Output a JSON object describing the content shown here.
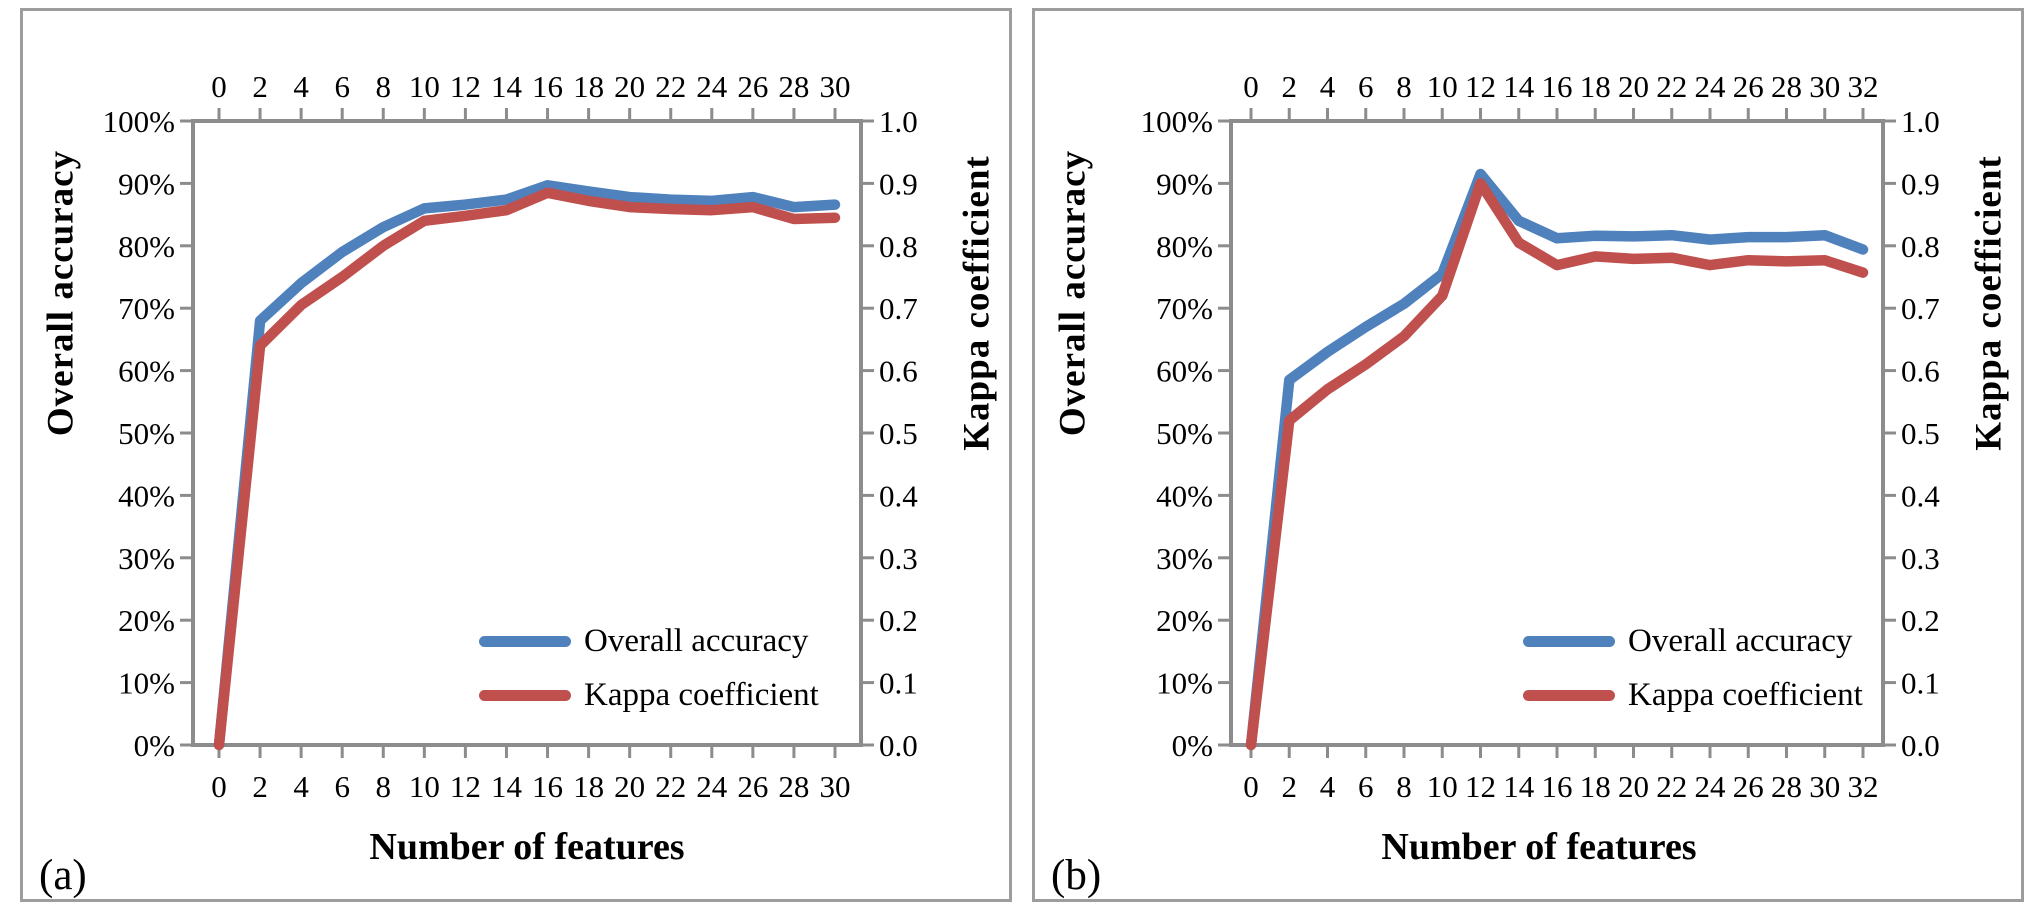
{
  "figure": {
    "background": "#ffffff",
    "panel_border_color": "#9d9d9d",
    "axis_color": "#8c8c8c",
    "text_color": "#000000",
    "accent_blue": "#4F81BD",
    "accent_red": "#C0504D"
  },
  "chart_data": [
    {
      "type": "line",
      "panel_label": "(a)",
      "x_label": "Number of features",
      "x": [
        0,
        2,
        4,
        6,
        8,
        10,
        12,
        14,
        16,
        18,
        20,
        22,
        24,
        26,
        28,
        30
      ],
      "x_tick_labels": [
        "0",
        "2",
        "4",
        "6",
        "8",
        "10",
        "12",
        "14",
        "16",
        "18",
        "20",
        "22",
        "24",
        "26",
        "28",
        "30"
      ],
      "x_range": [
        0,
        30
      ],
      "grid": false,
      "legend_position": "inside-bottom-right",
      "y_left": {
        "label": "Overall accuracy",
        "range": [
          0,
          100
        ],
        "tick_step": 10,
        "tick_labels": [
          "0%",
          "10%",
          "20%",
          "30%",
          "40%",
          "50%",
          "60%",
          "70%",
          "80%",
          "90%",
          "100%"
        ]
      },
      "y_right": {
        "label": "Kappa coefficient",
        "range": [
          0,
          1
        ],
        "tick_step": 0.1,
        "tick_labels": [
          "0.0",
          "0.1",
          "0.2",
          "0.3",
          "0.4",
          "0.5",
          "0.6",
          "0.7",
          "0.8",
          "0.9",
          "1.0"
        ]
      },
      "series": [
        {
          "name": "Overall accuracy",
          "axis": "left",
          "color": "#4F81BD",
          "values": [
            0,
            68,
            74,
            79,
            83,
            86,
            86.6,
            87.4,
            89.7,
            88.7,
            87.8,
            87.4,
            87.2,
            87.8,
            86.2,
            86.6
          ]
        },
        {
          "name": "Kappa coefficient",
          "axis": "right",
          "color": "#C0504D",
          "values": [
            0,
            0.64,
            0.705,
            0.75,
            0.8,
            0.84,
            0.848,
            0.857,
            0.885,
            0.872,
            0.862,
            0.859,
            0.857,
            0.862,
            0.843,
            0.845
          ]
        }
      ]
    },
    {
      "type": "line",
      "panel_label": "(b)",
      "x_label": "Number of features",
      "x": [
        0,
        2,
        4,
        6,
        8,
        10,
        12,
        14,
        16,
        18,
        20,
        22,
        24,
        26,
        28,
        30,
        32
      ],
      "x_tick_labels": [
        "0",
        "2",
        "4",
        "6",
        "8",
        "10",
        "12",
        "14",
        "16",
        "18",
        "20",
        "22",
        "24",
        "26",
        "28",
        "30",
        "32"
      ],
      "x_range": [
        0,
        32
      ],
      "grid": false,
      "legend_position": "inside-bottom-right",
      "y_left": {
        "label": "Overall accuracy",
        "range": [
          0,
          100
        ],
        "tick_step": 10,
        "tick_labels": [
          "0%",
          "10%",
          "20%",
          "30%",
          "40%",
          "50%",
          "60%",
          "70%",
          "80%",
          "90%",
          "100%"
        ]
      },
      "y_right": {
        "label": "Kappa coefficient",
        "range": [
          0,
          1
        ],
        "tick_step": 0.1,
        "tick_labels": [
          "0.0",
          "0.1",
          "0.2",
          "0.3",
          "0.4",
          "0.5",
          "0.6",
          "0.7",
          "0.8",
          "0.9",
          "1.0"
        ]
      },
      "series": [
        {
          "name": "Overall accuracy",
          "axis": "left",
          "color": "#4F81BD",
          "values": [
            0,
            58.5,
            63,
            67,
            70.7,
            75.5,
            91.5,
            84,
            81.2,
            81.6,
            81.5,
            81.7,
            81.0,
            81.4,
            81.4,
            81.7,
            79.4
          ]
        },
        {
          "name": "Kappa coefficient",
          "axis": "right",
          "color": "#C0504D",
          "values": [
            0,
            0.52,
            0.57,
            0.61,
            0.655,
            0.72,
            0.9,
            0.805,
            0.769,
            0.783,
            0.779,
            0.781,
            0.769,
            0.777,
            0.775,
            0.777,
            0.757
          ]
        }
      ]
    }
  ]
}
